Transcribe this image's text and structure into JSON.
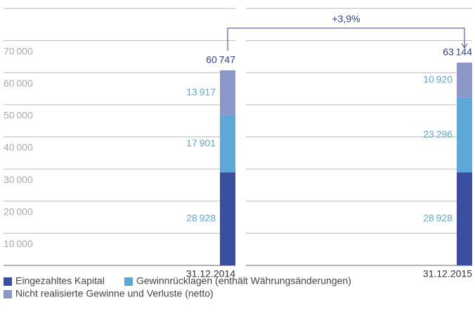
{
  "chart_data": {
    "type": "stacked_bar",
    "categories": [
      "31.12.2014",
      "31.12.2015"
    ],
    "series": [
      {
        "name": "Eingezahltes Kapital",
        "color": "#3a4fa0",
        "values": [
          28928,
          28928
        ],
        "value_labels": [
          "28 928",
          "28 928"
        ],
        "label_color": "#5ea8d8"
      },
      {
        "name": "Gewinnrücklagen (enthält Währungsänderungen)",
        "color": "#5ea8d8",
        "values": [
          17901,
          23296
        ],
        "value_labels": [
          "17 901",
          "23 296"
        ],
        "label_color": "#5ea8d8"
      },
      {
        "name": "Nicht realisierte Gewinne und Verluste (netto)",
        "color": "#8b97c9",
        "values": [
          13917,
          10920
        ],
        "value_labels": [
          "13 917",
          "10 920"
        ],
        "label_color": "#5ea8d8"
      }
    ],
    "totals": {
      "values": [
        60747,
        63144
      ],
      "value_labels": [
        "60 747",
        "63 144"
      ],
      "color": "#2e3f8f"
    },
    "annotation": "+3,9%",
    "ylim": [
      0,
      80000
    ],
    "yticks": [
      {
        "value": 10000,
        "label": "10 000"
      },
      {
        "value": 20000,
        "label": "20 000"
      },
      {
        "value": 30000,
        "label": "30 000"
      },
      {
        "value": 40000,
        "label": "40 000"
      },
      {
        "value": 50000,
        "label": "50 000"
      },
      {
        "value": 60000,
        "label": "60 000"
      },
      {
        "value": 70000,
        "label": "70 000"
      }
    ],
    "grid": true
  }
}
